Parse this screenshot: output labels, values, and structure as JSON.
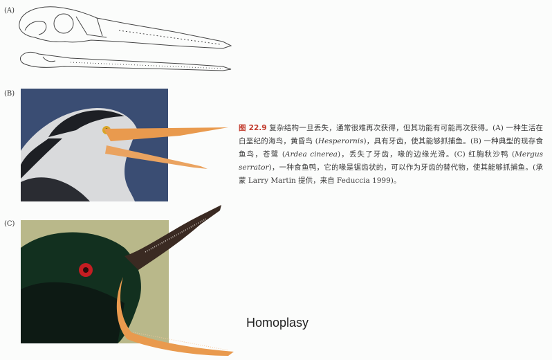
{
  "panels": {
    "a_label": "(A)",
    "b_label": "(B)",
    "c_label": "(C)"
  },
  "caption": {
    "figure_number": "图 22.9",
    "text_1": " 复杂结构一旦丢失，通常很难再次获得，但其功能有可能再次获得。(A) 一种生活在白垩纪的海鸟，黄昏鸟 (",
    "genus_1": "Hesperornis",
    "text_2": ")，具有牙齿，使其能够抓捕鱼。(B) 一种典型的现存食鱼鸟，苍鹭 (",
    "species_2": "Ardea cinerea",
    "text_3": ")，丢失了牙齿，喙的边缘光滑。(C) 红胸秋沙鸭 (",
    "species_3": "Mergus serrator",
    "text_4": ")，一种食鱼鸭，它的喙是锯齿状的，可以作为牙齿的替代物，使其能够抓捕鱼。(承蒙 Larry Martin 提供，来自 Feduccia 1999)。"
  },
  "overlay_text": "Homoplasy",
  "colors": {
    "figure_number": "#c23a2c",
    "heron_bg": "#3a4d73",
    "merganser_bg": "#b9b88a",
    "beak_orange": "#e99a4e"
  }
}
